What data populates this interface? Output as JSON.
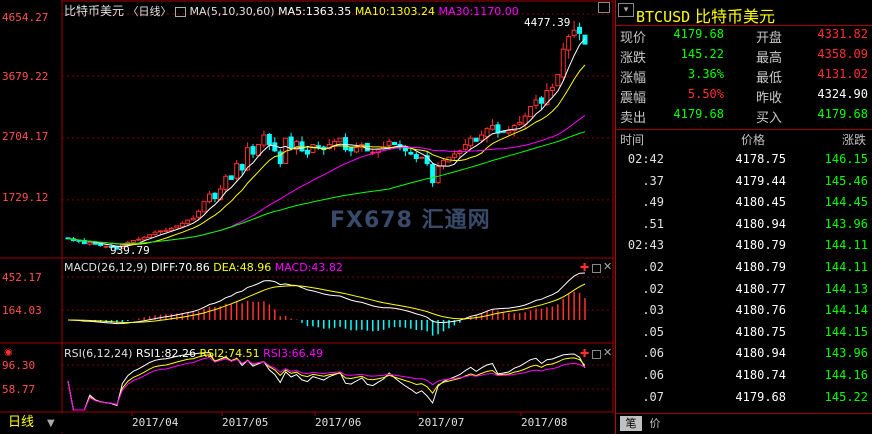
{
  "main_chart": {
    "symbol_name": "比特币美元",
    "period": "〈日线〉",
    "ma_params": "MA(5,10,30,60)",
    "ma5": "MA5:1363.35",
    "ma10": "MA10:1303.24",
    "ma30": "MA30:1170.00",
    "high_label": "4477.39",
    "low_label": "939.79",
    "y_ticks": [
      "4654.27",
      "3679.22",
      "2704.17",
      "1729.12"
    ],
    "watermark": "FX678 汇通网"
  },
  "macd_panel": {
    "title": "MACD(26,12,9)",
    "diff": "DIFF:70.86",
    "dea": "DEA:48.96",
    "macd": "MACD:43.82",
    "y_ticks": [
      "452.17",
      "164.03"
    ]
  },
  "rsi_panel": {
    "title": "RSI(6,12,24)",
    "rsi1": "RSI1:82.26",
    "rsi2": "RSI2:74.51",
    "rsi3": "RSI3:66.49",
    "y_ticks": [
      "96.30",
      "58.77"
    ]
  },
  "x_axis": {
    "period_button": "日线",
    "months": [
      "2017/04",
      "2017/05",
      "2017/06",
      "2017/07",
      "2017/08"
    ]
  },
  "quote": {
    "code": "BTCUSD",
    "name": "比特币美元",
    "fields": [
      {
        "label": "现价",
        "value": "4179.68",
        "color": "#00ff00",
        "label2": "开盘",
        "value2": "4331.82",
        "color2": "#ff3030"
      },
      {
        "label": "涨跌",
        "value": "145.22",
        "color": "#00ff00",
        "label2": "最高",
        "value2": "4358.09",
        "color2": "#ff3030"
      },
      {
        "label": "涨幅",
        "value": "3.36%",
        "color": "#00ff00",
        "label2": "最低",
        "value2": "4131.02",
        "color2": "#ff3030"
      },
      {
        "label": "震幅",
        "value": "5.50%",
        "color": "#ff3030",
        "label2": "昨收",
        "value2": "4324.90",
        "color2": "#ffffff"
      },
      {
        "label": "卖出",
        "value": "4179.68",
        "color": "#00ff00",
        "label2": "买入",
        "value2": "4179.68",
        "color2": "#00ff00"
      }
    ],
    "tick_headers": {
      "time": "时间",
      "price": "价格",
      "change": "涨跌"
    },
    "ticks": [
      {
        "time": "02:42",
        "price": "4178.75",
        "change": "146.15"
      },
      {
        "time": ".37",
        "price": "4179.44",
        "change": "145.46"
      },
      {
        "time": ".49",
        "price": "4180.45",
        "change": "144.45"
      },
      {
        "time": ".51",
        "price": "4180.94",
        "change": "143.96"
      },
      {
        "time": "02:43",
        "price": "4180.79",
        "change": "144.11"
      },
      {
        "time": ".02",
        "price": "4180.79",
        "change": "144.11"
      },
      {
        "time": ".02",
        "price": "4180.77",
        "change": "144.13"
      },
      {
        "time": ".03",
        "price": "4180.76",
        "change": "144.14"
      },
      {
        "time": ".05",
        "price": "4180.75",
        "change": "144.15"
      },
      {
        "time": ".06",
        "price": "4180.94",
        "change": "143.96"
      },
      {
        "time": ".06",
        "price": "4180.74",
        "change": "144.16"
      },
      {
        "time": ".07",
        "price": "4179.68",
        "change": "145.22"
      }
    ],
    "bottom_tabs": [
      "笔",
      "价"
    ]
  },
  "chart_data": [
    {
      "type": "candlestick",
      "title": "比特币美元 〈日线〉",
      "ylim": [
        939.79,
        4654.27
      ],
      "x_categories": [
        "2017/04",
        "2017/05",
        "2017/06",
        "2017/07",
        "2017/08"
      ],
      "series": [
        {
          "name": "K",
          "ohlc_close_approx": [
            1120,
            1090,
            1080,
            1040,
            1060,
            1030,
            1010,
            1000,
            990,
            960,
            1020,
            1060,
            1090,
            1110,
            1140,
            1180,
            1220,
            1240,
            1250,
            1280,
            1320,
            1360,
            1410,
            1440,
            1550,
            1700,
            1820,
            1750,
            1900,
            2100,
            2050,
            2300,
            2200,
            2550,
            2450,
            2600,
            2750,
            2600,
            2500,
            2300,
            2700,
            2550,
            2650,
            2500,
            2450,
            2600,
            2560,
            2520,
            2600,
            2650,
            2700,
            2520,
            2500,
            2550,
            2600,
            2500,
            2480,
            2520,
            2560,
            2650,
            2600,
            2550,
            2500,
            2450,
            2380,
            2400,
            2300,
            2000,
            2250,
            2350,
            2400,
            2450,
            2500,
            2600,
            2700,
            2650,
            2750,
            2850,
            2900,
            2780,
            2800,
            2820,
            2900,
            2950,
            3050,
            3200,
            3300,
            3250,
            3450,
            3500,
            3700,
            4100,
            4300,
            4400,
            4350,
            4179.68
          ]
        },
        {
          "name": "MA5",
          "last": 1363.35
        },
        {
          "name": "MA10",
          "last": 1303.24
        },
        {
          "name": "MA30",
          "last": 1170.0
        }
      ],
      "annotations": [
        {
          "text": "4477.39",
          "kind": "high"
        },
        {
          "text": "939.79",
          "kind": "low"
        }
      ]
    },
    {
      "type": "bar",
      "title": "MACD(26,12,9)",
      "ylim": [
        -170,
        452.17
      ],
      "series": [
        {
          "name": "DIFF",
          "last": 70.86
        },
        {
          "name": "DEA",
          "last": 48.96
        },
        {
          "name": "MACD",
          "last": 43.82
        }
      ]
    },
    {
      "type": "line",
      "title": "RSI(6,12,24)",
      "ylim": [
        0,
        100
      ],
      "series": [
        {
          "name": "RSI1",
          "last": 82.26
        },
        {
          "name": "RSI2",
          "last": 74.51
        },
        {
          "name": "RSI3",
          "last": 66.49
        }
      ]
    }
  ],
  "colors": {
    "up": "#ff3030",
    "down": "#00ffff",
    "ma5": "#ffffff",
    "ma10": "#ffff00",
    "ma30": "#ff00ff",
    "ma60": "#00ff00",
    "grid_red": "#800000"
  }
}
